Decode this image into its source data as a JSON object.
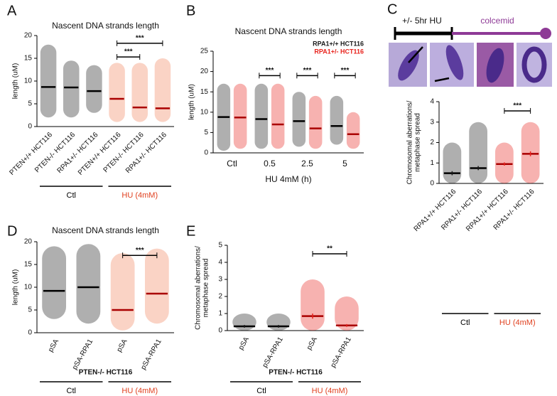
{
  "schematic": {
    "treatment": "+/- 5hr HU",
    "mitosis": "colcemid"
  },
  "chart_data": [
    {
      "type": "dot",
      "label": "A",
      "title": "Nascent DNA strands length",
      "ylabel": [
        "length (uM)"
      ],
      "categories": [
        "PTEN+/+ HCT116",
        "PTEN-/- HCT116",
        "RPA1+/- HCT116",
        "PTEN+/+ HCT116",
        "PTEN-/- HCT116",
        "RPA1+/- HCT116"
      ],
      "series": [
        {
          "colors": [
            "#1a1a1a",
            "#1a1a1a",
            "#1a1a1a",
            "#f0805a",
            "#f0805a",
            "#f0805a"
          ],
          "values": [
            8.7,
            8.6,
            7.8,
            6.1,
            4.2,
            4.0
          ],
          "range": [
            [
              2,
              18
            ],
            [
              2,
              14.5
            ],
            [
              3,
              13.5
            ],
            [
              1,
              14
            ],
            [
              1,
              14
            ],
            [
              1,
              15
            ]
          ]
        }
      ],
      "ylim": [
        0,
        20
      ],
      "yticks": [
        0,
        5,
        10,
        15,
        20
      ],
      "brackets": [
        {
          "text": "***",
          "from": 3,
          "to": 5,
          "y": 18.3
        },
        {
          "text": "***",
          "from": 3,
          "to": 4,
          "y": 15.3
        }
      ],
      "groups": [
        {
          "label": "Ctl",
          "color": "#000000",
          "from": 0,
          "to": 2
        },
        {
          "label": "HU (4mM)",
          "color": "#e0401f",
          "from": 3,
          "to": 5
        }
      ]
    },
    {
      "type": "dot",
      "label": "B",
      "title": "Nascent DNA strands length",
      "ylabel": [
        "length (uM)"
      ],
      "xlabel": "HU 4mM (h)",
      "categories": [
        "Ctl",
        "0.5",
        "2.5",
        "5"
      ],
      "series": [
        {
          "name": "RPA1+/+ HCT116",
          "color": "#1a1a1a",
          "values": [
            8.8,
            8.3,
            7.8,
            6.6
          ],
          "range": [
            [
              0.5,
              17
            ],
            [
              1,
              17
            ],
            [
              1.5,
              15
            ],
            [
              2,
              14
            ]
          ]
        },
        {
          "name": "RPA1+/- HCT116",
          "color": "#e8231d",
          "values": [
            8.7,
            7.0,
            6.0,
            4.6
          ],
          "range": [
            [
              1,
              17
            ],
            [
              1,
              17
            ],
            [
              1,
              14
            ],
            [
              1,
              10
            ]
          ]
        }
      ],
      "ylim": [
        0,
        25
      ],
      "yticks": [
        0,
        5,
        10,
        15,
        20,
        25
      ],
      "brackets": [
        {
          "text": "***",
          "category": 1,
          "y": 19
        },
        {
          "text": "***",
          "category": 2,
          "y": 19
        },
        {
          "text": "***",
          "category": 3,
          "y": 19
        }
      ]
    },
    {
      "type": "dot",
      "label": "C",
      "ylabel": [
        "Chromosomal aberrations/",
        "metaphase spread"
      ],
      "categories": [
        "RPA1+/+ HCT116",
        "RPA1+/- HCT116",
        "RPA1+/+ HCT116",
        "RPA1+/- HCT116"
      ],
      "series": [
        {
          "colors": [
            "#1a1a1a",
            "#1a1a1a",
            "#e8231d",
            "#e8231d"
          ],
          "values": [
            0.5,
            0.75,
            0.95,
            1.45
          ],
          "errors": [
            0.1,
            0.1,
            0.08,
            0.12
          ],
          "range": [
            [
              0,
              2
            ],
            [
              0,
              3
            ],
            [
              0,
              2
            ],
            [
              0,
              3
            ]
          ]
        }
      ],
      "ylim": [
        0,
        4
      ],
      "yticks": [
        0,
        1,
        2,
        3,
        4
      ],
      "brackets": [
        {
          "text": "***",
          "from": 2,
          "to": 3,
          "y": 3.55
        }
      ],
      "groups": [
        {
          "label": "Ctl",
          "color": "#000000",
          "from": 0,
          "to": 1
        },
        {
          "label": "HU (4mM)",
          "color": "#e0401f",
          "from": 2,
          "to": 3
        }
      ]
    },
    {
      "type": "dot",
      "label": "D",
      "title": "Nascent DNA strands length",
      "ylabel": [
        "length (uM)"
      ],
      "caption": "PTEN-/- HCT116",
      "categories": [
        "pSA",
        "pSA-RPA1",
        "pSA",
        "pSA-RPA1"
      ],
      "series": [
        {
          "colors": [
            "#1a1a1a",
            "#1a1a1a",
            "#f0805a",
            "#f0805a"
          ],
          "values": [
            9.2,
            10.0,
            5.0,
            8.6
          ],
          "range": [
            [
              3,
              19
            ],
            [
              2,
              19.5
            ],
            [
              0.5,
              17.5
            ],
            [
              2,
              18.5
            ]
          ]
        }
      ],
      "ylim": [
        0,
        20
      ],
      "yticks": [
        0,
        5,
        10,
        15,
        20
      ],
      "brackets": [
        {
          "text": "***",
          "from": 2,
          "to": 3,
          "y": 17
        }
      ],
      "groups": [
        {
          "label": "Ctl",
          "color": "#000000",
          "from": 0,
          "to": 1
        },
        {
          "label": "HU (4mM)",
          "color": "#e0401f",
          "from": 2,
          "to": 3
        }
      ]
    },
    {
      "type": "dot",
      "label": "E",
      "ylabel": [
        "Chromosomal aberrations/",
        "metaphase spread"
      ],
      "caption": "PTEN-/- HCT116",
      "categories": [
        "pSA",
        "pSA-RPA1",
        "pSA",
        "pSA-RPA1"
      ],
      "series": [
        {
          "colors": [
            "#1a1a1a",
            "#1a1a1a",
            "#e8231d",
            "#e8231d"
          ],
          "values": [
            0.25,
            0.25,
            0.85,
            0.3
          ],
          "errors": [
            0.08,
            0.08,
            0.15,
            0.08
          ],
          "range": [
            [
              0,
              1
            ],
            [
              0,
              1
            ],
            [
              0,
              3
            ],
            [
              0,
              2
            ]
          ]
        }
      ],
      "ylim": [
        0,
        5
      ],
      "yticks": [
        0,
        1,
        2,
        3,
        4,
        5
      ],
      "brackets": [
        {
          "text": "**",
          "from": 2,
          "to": 3,
          "y": 4.5
        }
      ],
      "groups": [
        {
          "label": "Ctl",
          "color": "#000000",
          "from": 0,
          "to": 1
        },
        {
          "label": "HU (4mM)",
          "color": "#e0401f",
          "from": 2,
          "to": 3
        }
      ]
    }
  ]
}
